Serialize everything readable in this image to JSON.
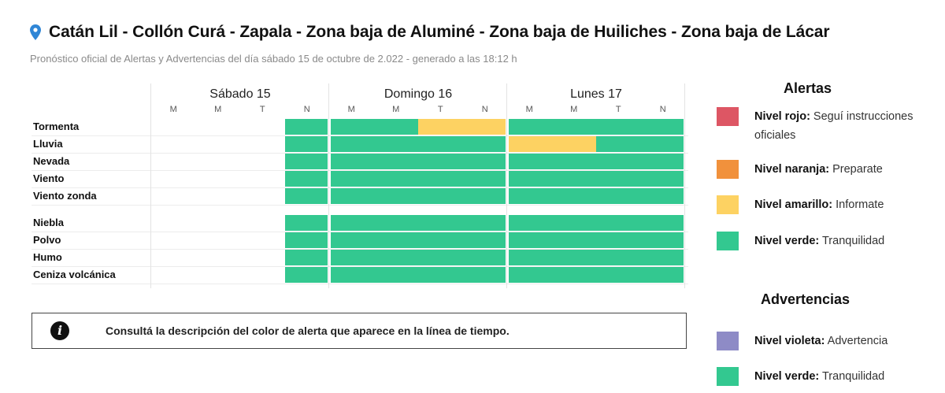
{
  "header": {
    "title": "Catán Lil - Collón Curá - Zapala - Zona baja de Aluminé - Zona baja de Huiliches - Zona baja de Lácar",
    "subtitle": "Pronóstico oficial de Alertas y Advertencias del día sábado 15 de octubre de 2.022 - generado a las 18:12 h",
    "icon": "map-pin-icon"
  },
  "colors": {
    "rojo": "#dd5664",
    "naranja": "#f1913c",
    "amarillo": "#fdd262",
    "verde": "#33c890",
    "violeta": "#8e8bc6"
  },
  "days": [
    {
      "name": "Sábado 15",
      "slots": [
        "M",
        "M",
        "T",
        "N"
      ]
    },
    {
      "name": "Domingo 16",
      "slots": [
        "M",
        "M",
        "T",
        "N"
      ]
    },
    {
      "name": "Lunes 17",
      "slots": [
        "M",
        "M",
        "T",
        "N"
      ]
    }
  ],
  "phenomena": [
    {
      "label": "Tormenta",
      "levels": [
        "",
        "",
        "",
        "verde",
        "verde",
        "verde",
        "amarillo",
        "amarillo",
        "verde",
        "verde",
        "verde",
        "verde"
      ]
    },
    {
      "label": "Lluvia",
      "levels": [
        "",
        "",
        "",
        "verde",
        "verde",
        "verde",
        "verde",
        "verde",
        "amarillo",
        "amarillo",
        "verde",
        "verde"
      ]
    },
    {
      "label": "Nevada",
      "levels": [
        "",
        "",
        "",
        "verde",
        "verde",
        "verde",
        "verde",
        "verde",
        "verde",
        "verde",
        "verde",
        "verde"
      ]
    },
    {
      "label": "Viento",
      "levels": [
        "",
        "",
        "",
        "verde",
        "verde",
        "verde",
        "verde",
        "verde",
        "verde",
        "verde",
        "verde",
        "verde"
      ]
    },
    {
      "label": "Viento zonda",
      "levels": [
        "",
        "",
        "",
        "verde",
        "verde",
        "verde",
        "verde",
        "verde",
        "verde",
        "verde",
        "verde",
        "verde"
      ]
    },
    {
      "label": "Niebla",
      "levels": [
        "",
        "",
        "",
        "verde",
        "verde",
        "verde",
        "verde",
        "verde",
        "verde",
        "verde",
        "verde",
        "verde"
      ]
    },
    {
      "label": "Polvo",
      "levels": [
        "",
        "",
        "",
        "verde",
        "verde",
        "verde",
        "verde",
        "verde",
        "verde",
        "verde",
        "verde",
        "verde"
      ]
    },
    {
      "label": "Humo",
      "levels": [
        "",
        "",
        "",
        "verde",
        "verde",
        "verde",
        "verde",
        "verde",
        "verde",
        "verde",
        "verde",
        "verde"
      ]
    },
    {
      "label": "Ceniza volcánica",
      "levels": [
        "",
        "",
        "",
        "verde",
        "verde",
        "verde",
        "verde",
        "verde",
        "verde",
        "verde",
        "verde",
        "verde"
      ]
    }
  ],
  "info": {
    "icon": "info-icon",
    "text": "Consultá la descripción del color de alerta que aparece en la línea de tiempo."
  },
  "legend": {
    "alertas_title": "Alertas",
    "alertas": [
      {
        "level": "rojo",
        "name": "Nivel rojo:",
        "desc": "Seguí instrucciones oficiales"
      },
      {
        "level": "naranja",
        "name": "Nivel naranja:",
        "desc": "Preparate"
      },
      {
        "level": "amarillo",
        "name": "Nivel amarillo:",
        "desc": "Informate"
      },
      {
        "level": "verde",
        "name": "Nivel verde:",
        "desc": "Tranquilidad"
      }
    ],
    "advertencias_title": "Advertencias",
    "advertencias": [
      {
        "level": "violeta",
        "name": "Nivel violeta:",
        "desc": "Advertencia"
      },
      {
        "level": "verde",
        "name": "Nivel verde:",
        "desc": "Tranquilidad"
      }
    ]
  }
}
